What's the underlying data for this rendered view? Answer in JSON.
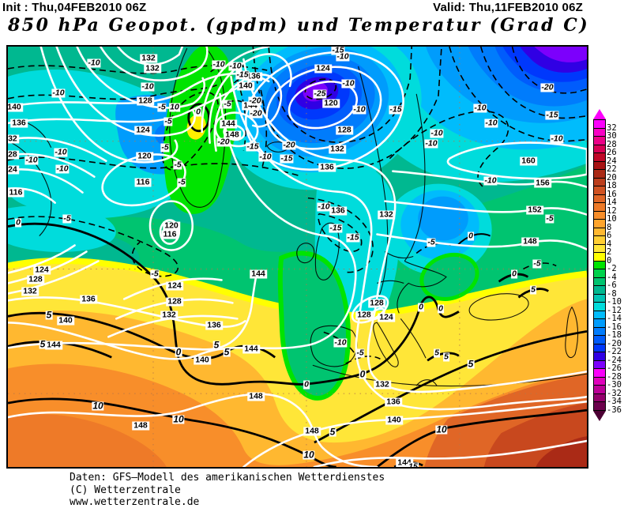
{
  "header": {
    "init": "Init : Thu,04FEB2010 06Z",
    "valid": "Valid: Thu,11FEB2010 06Z",
    "title": "850 hPa Geopot. (gpdm) und Temperatur (Grad C)"
  },
  "footer": {
    "line1": "Daten: GFS–Modell des amerikanischen Wetterdienstes",
    "line2": "(C) Wetterzentrale",
    "line3": "www.wetterzentrale.de"
  },
  "colorbar": {
    "title": "Temperatur (Grad C)",
    "values": [
      32,
      30,
      28,
      26,
      24,
      22,
      20,
      18,
      16,
      14,
      12,
      10,
      8,
      6,
      4,
      2,
      0,
      -2,
      -4,
      -6,
      -8,
      -10,
      -12,
      -14,
      -16,
      -18,
      -20,
      -22,
      -24,
      -26,
      -28,
      -30,
      -32,
      -34,
      -36
    ],
    "colors": [
      "#fc00fc",
      "#f800c4",
      "#ec0088",
      "#d80054",
      "#c00828",
      "#a81414",
      "#aa2a16",
      "#bc3e1c",
      "#d05222",
      "#e06626",
      "#ee7a28",
      "#f88e2a",
      "#fea42c",
      "#ffb830",
      "#ffce34",
      "#ffe638",
      "#ffff00",
      "#00e400",
      "#00d24c",
      "#00c470",
      "#00b890",
      "#00c4b4",
      "#00dcdc",
      "#00bcfc",
      "#009cfc",
      "#007cfc",
      "#005cfc",
      "#0038fc",
      "#3000e4",
      "#7c00fc",
      "#fa00fa",
      "#e000bc",
      "#bc0098",
      "#94006c",
      "#6c004c"
    ],
    "arrow_up": "#fc00fc",
    "arrow_down": "#4c0034"
  },
  "map": {
    "units": {
      "geopotential": "gpdm",
      "temperature": "Grad C"
    },
    "label_kinds": {
      "g": "geopotential-contour-label",
      "t": "temperature-contour-label",
      "b": "temperature-bold-label"
    },
    "labels": [
      [
        "140",
        8,
        77,
        "g"
      ],
      [
        "136",
        14,
        97,
        "g"
      ],
      [
        "132",
        3,
        117,
        "g"
      ],
      [
        "128",
        3,
        137,
        "g"
      ],
      [
        "124",
        3,
        156,
        "g"
      ],
      [
        "116",
        10,
        185,
        "g"
      ],
      [
        "132",
        178,
        15,
        "g"
      ],
      [
        "132",
        183,
        28,
        "g"
      ],
      [
        "128",
        174,
        69,
        "g"
      ],
      [
        "124",
        171,
        106,
        "g"
      ],
      [
        "120",
        173,
        139,
        "g"
      ],
      [
        "116",
        171,
        172,
        "g"
      ],
      [
        "120",
        207,
        227,
        "g"
      ],
      [
        "116",
        205,
        238,
        "g"
      ],
      [
        "136",
        311,
        38,
        "g"
      ],
      [
        "140",
        301,
        50,
        "g"
      ],
      [
        "144",
        307,
        75,
        "g"
      ],
      [
        "144",
        279,
        98,
        "g"
      ],
      [
        "148",
        284,
        112,
        "g"
      ],
      [
        "124",
        399,
        28,
        "g"
      ],
      [
        "120",
        409,
        72,
        "g"
      ],
      [
        "128",
        426,
        106,
        "g"
      ],
      [
        "132",
        417,
        130,
        "g"
      ],
      [
        "136",
        404,
        153,
        "g"
      ],
      [
        "136",
        418,
        208,
        "g"
      ],
      [
        "132",
        479,
        213,
        "g"
      ],
      [
        "160",
        659,
        145,
        "g"
      ],
      [
        "156",
        677,
        173,
        "g"
      ],
      [
        "152",
        667,
        207,
        "g"
      ],
      [
        "148",
        661,
        247,
        "g"
      ],
      [
        "124",
        43,
        283,
        "g"
      ],
      [
        "128",
        35,
        295,
        "g"
      ],
      [
        "132",
        28,
        310,
        "g"
      ],
      [
        "136",
        102,
        320,
        "g"
      ],
      [
        "140",
        73,
        347,
        "g"
      ],
      [
        "144",
        58,
        378,
        "g"
      ],
      [
        "124",
        211,
        303,
        "g"
      ],
      [
        "128",
        211,
        323,
        "g"
      ],
      [
        "132",
        204,
        340,
        "g"
      ],
      [
        "136",
        261,
        353,
        "g"
      ],
      [
        "140",
        246,
        397,
        "g"
      ],
      [
        "144",
        308,
        383,
        "g"
      ],
      [
        "144",
        317,
        288,
        "g"
      ],
      [
        "148",
        168,
        480,
        "g"
      ],
      [
        "148",
        314,
        443,
        "g"
      ],
      [
        "148",
        385,
        487,
        "g"
      ],
      [
        "128",
        467,
        325,
        "g"
      ],
      [
        "128",
        451,
        340,
        "g"
      ],
      [
        "124",
        479,
        343,
        "g"
      ],
      [
        "132",
        474,
        428,
        "g"
      ],
      [
        "136",
        488,
        450,
        "g"
      ],
      [
        "140",
        489,
        473,
        "g"
      ],
      [
        "144",
        502,
        527,
        "g"
      ],
      [
        "-10",
        109,
        21,
        "t"
      ],
      [
        "-10",
        64,
        59,
        "t"
      ],
      [
        "-10",
        177,
        51,
        "t"
      ],
      [
        "-10",
        30,
        144,
        "t"
      ],
      [
        "-10",
        67,
        134,
        "t"
      ],
      [
        "-10",
        69,
        155,
        "t"
      ],
      [
        "-10",
        267,
        23,
        "t"
      ],
      [
        "-10",
        288,
        25,
        "t"
      ],
      [
        "-15",
        297,
        36,
        "t"
      ],
      [
        "-5",
        278,
        73,
        "t"
      ],
      [
        "-20",
        313,
        69,
        "t"
      ],
      [
        "-20",
        314,
        85,
        "t"
      ],
      [
        "-20",
        273,
        121,
        "t"
      ],
      [
        "-15",
        310,
        127,
        "t"
      ],
      [
        "-20",
        356,
        125,
        "t"
      ],
      [
        "-10",
        326,
        140,
        "t"
      ],
      [
        "-15",
        353,
        142,
        "t"
      ],
      [
        "-25",
        395,
        60,
        "t"
      ],
      [
        "-15",
        418,
        5,
        "t"
      ],
      [
        "-10",
        424,
        13,
        "t"
      ],
      [
        "-10",
        431,
        47,
        "t"
      ],
      [
        "-10",
        445,
        80,
        "t"
      ],
      [
        "-15",
        491,
        80,
        "t"
      ],
      [
        "-20",
        683,
        52,
        "t"
      ],
      [
        "-15",
        689,
        87,
        "t"
      ],
      [
        "-10",
        695,
        117,
        "t"
      ],
      [
        "-10",
        598,
        78,
        "t"
      ],
      [
        "-10",
        612,
        97,
        "t"
      ],
      [
        "-10",
        543,
        110,
        "t"
      ],
      [
        "-10",
        536,
        123,
        "t"
      ],
      [
        "-10",
        611,
        170,
        "t"
      ],
      [
        "-5",
        686,
        218,
        "t"
      ],
      [
        "-5",
        536,
        248,
        "t"
      ],
      [
        "0",
        586,
        240,
        "t"
      ],
      [
        "-15",
        415,
        230,
        "t"
      ],
      [
        "-15",
        437,
        242,
        "t"
      ],
      [
        "-10",
        400,
        203,
        "t"
      ],
      [
        "-5",
        195,
        77,
        "t"
      ],
      [
        "10",
        211,
        77,
        "t"
      ],
      [
        "0",
        241,
        83,
        "t"
      ],
      [
        "-5",
        203,
        95,
        "t"
      ],
      [
        "-5",
        199,
        128,
        "t"
      ],
      [
        "-5",
        215,
        150,
        "t"
      ],
      [
        "-5",
        220,
        172,
        "t"
      ],
      [
        "0",
        13,
        223,
        "t"
      ],
      [
        "-5",
        75,
        218,
        "t"
      ],
      [
        "-5",
        186,
        288,
        "t"
      ],
      [
        "-10",
        421,
        375,
        "t"
      ],
      [
        "-5",
        446,
        388,
        "t"
      ],
      [
        "0",
        378,
        428,
        "t"
      ],
      [
        "0",
        523,
        330,
        "t"
      ],
      [
        "0",
        548,
        332,
        "t"
      ],
      [
        "5",
        543,
        388,
        "t"
      ],
      [
        "5",
        555,
        393,
        "t"
      ],
      [
        "0",
        641,
        288,
        "t"
      ],
      [
        "5",
        665,
        308,
        "t"
      ],
      [
        "-5",
        670,
        275,
        "t"
      ],
      [
        "15",
        513,
        532,
        "t"
      ],
      [
        "5",
        52,
        340,
        "b"
      ],
      [
        "5",
        44,
        377,
        "b"
      ],
      [
        "0",
        216,
        387,
        "b"
      ],
      [
        "5",
        264,
        378,
        "b"
      ],
      [
        "5",
        277,
        387,
        "b"
      ],
      [
        "10",
        114,
        455,
        "b"
      ],
      [
        "10",
        216,
        472,
        "b"
      ],
      [
        "10",
        549,
        485,
        "b"
      ],
      [
        "10",
        381,
        517,
        "b"
      ],
      [
        "5",
        411,
        488,
        "b"
      ],
      [
        "0",
        449,
        415,
        "b"
      ],
      [
        "5",
        586,
        402,
        "b"
      ]
    ]
  }
}
